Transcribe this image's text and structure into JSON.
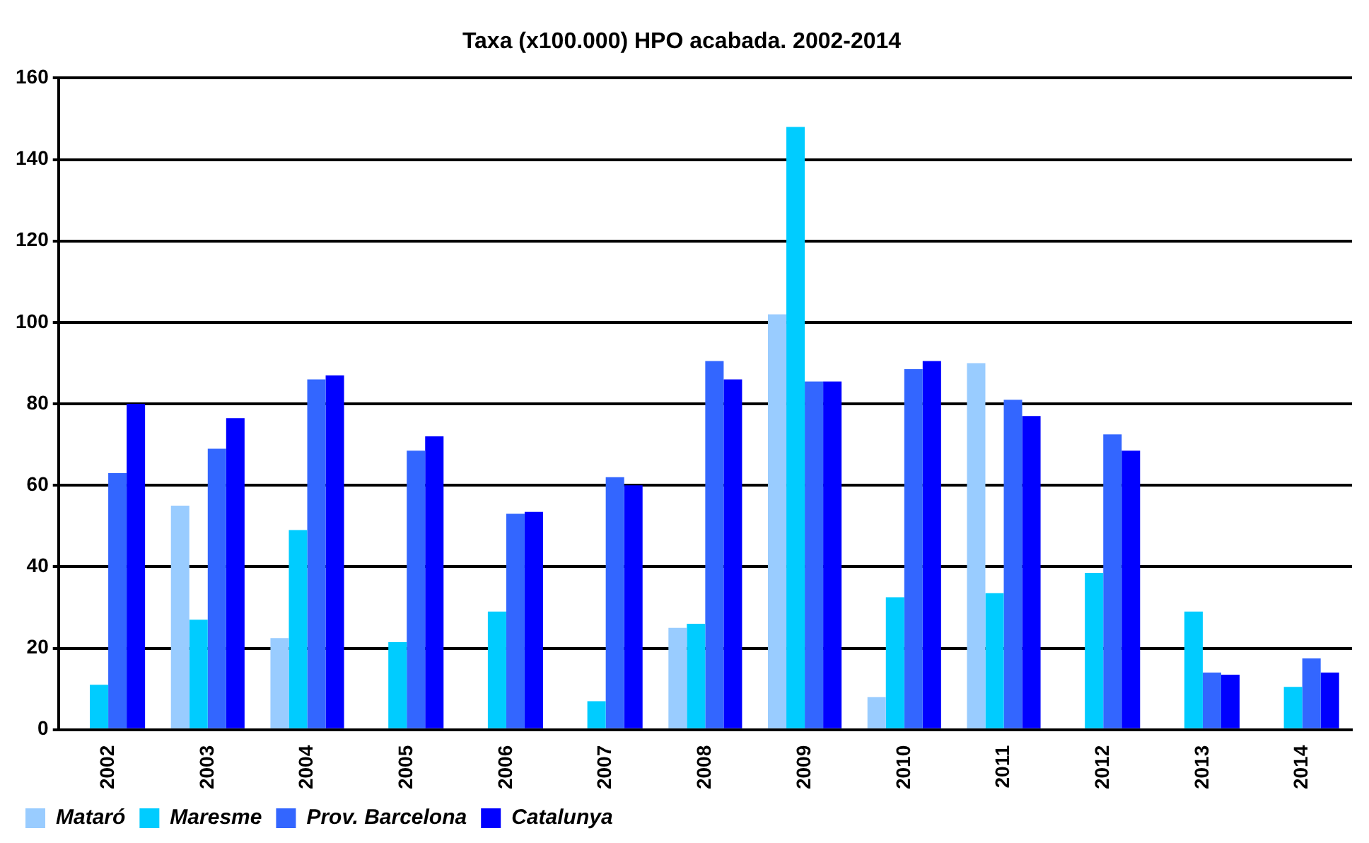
{
  "chart_data": {
    "type": "bar",
    "title": "Taxa (x100.000) HPO acabada. 2002-2014",
    "categories": [
      "2002",
      "2003",
      "2004",
      "2005",
      "2006",
      "2007",
      "2008",
      "2009",
      "2010",
      "2011",
      "2012",
      "2013",
      "2014"
    ],
    "series": [
      {
        "name": "Mataró",
        "color": "#99ccff",
        "values": [
          null,
          55,
          22.5,
          null,
          null,
          null,
          25,
          102,
          8,
          90,
          null,
          null,
          null
        ]
      },
      {
        "name": "Maresme",
        "color": "#00ccff",
        "values": [
          11,
          27,
          49,
          21.5,
          29,
          7,
          26,
          148,
          32.5,
          33.5,
          38.5,
          29,
          10.5
        ]
      },
      {
        "name": "Prov. Barcelona",
        "color": "#3366ff",
        "values": [
          63,
          69,
          86,
          68.5,
          53,
          62,
          90.5,
          85.5,
          88.5,
          81,
          72.5,
          14,
          17.5
        ]
      },
      {
        "name": "Catalunya",
        "color": "#0000ff",
        "values": [
          80,
          76.5,
          87,
          72,
          53.5,
          60,
          86,
          85.5,
          90.5,
          77,
          68.5,
          13.5,
          14
        ]
      }
    ],
    "ylim": [
      0,
      160
    ],
    "yticks": [
      0,
      20,
      40,
      60,
      80,
      100,
      120,
      140,
      160
    ],
    "grid": "y",
    "legend": "bottom"
  }
}
